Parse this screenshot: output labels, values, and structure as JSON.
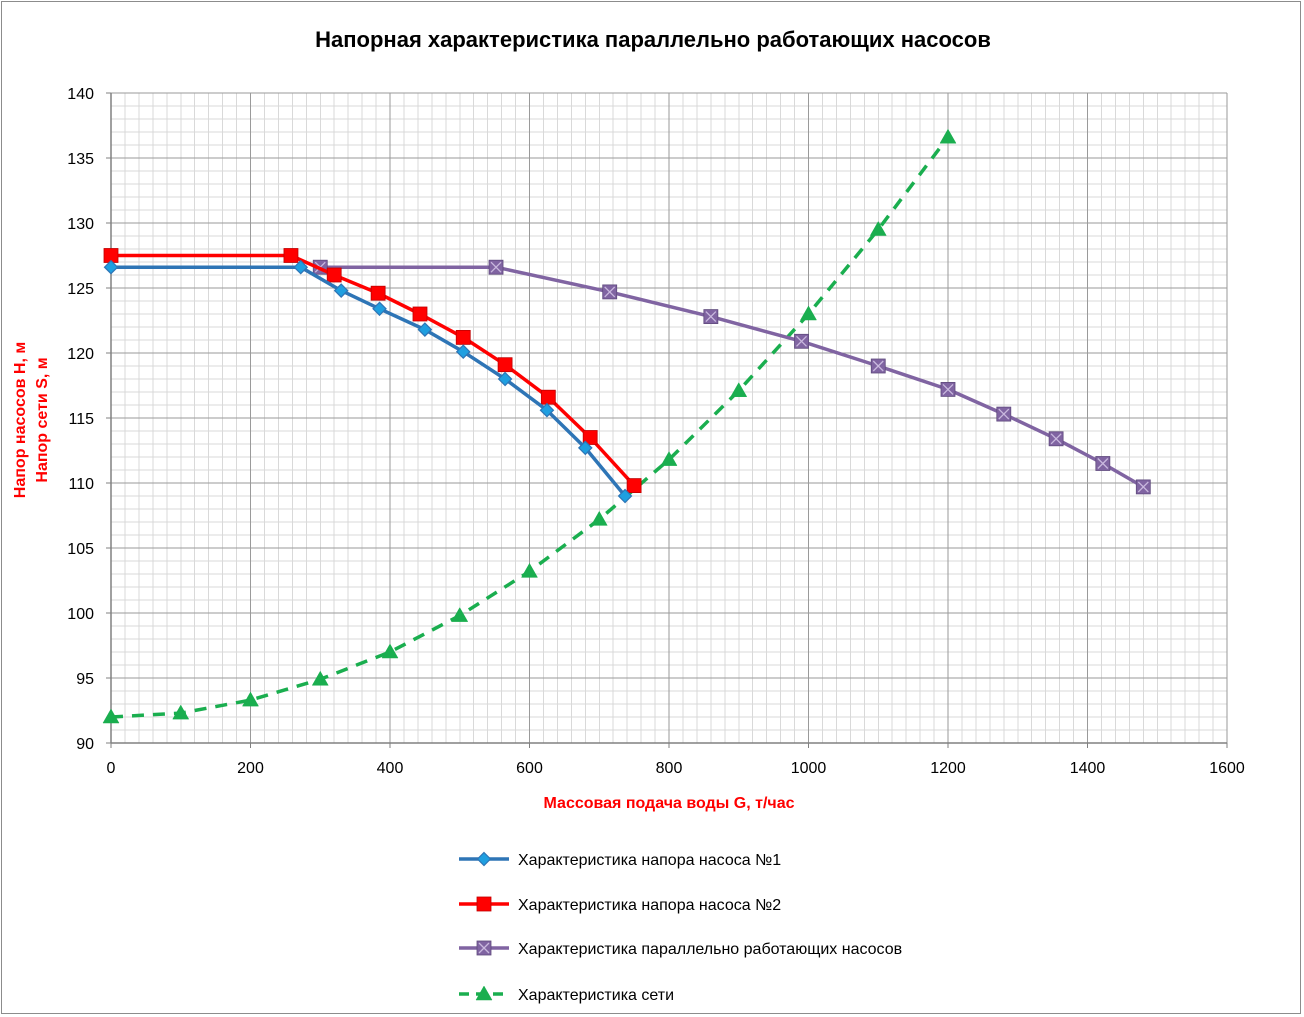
{
  "chart_data": {
    "type": "line",
    "title": "Напорная характеристика параллельно работающих насосов",
    "xlabel": "Массовая подача воды G, т/час",
    "ylabel_lines": [
      "Напор насосов Н, м",
      "Напор сети S, м"
    ],
    "xlim": [
      0,
      1600
    ],
    "ylim": [
      90,
      140
    ],
    "x_ticks": [
      0,
      200,
      400,
      600,
      800,
      1000,
      1200,
      1400,
      1600
    ],
    "y_ticks": [
      90,
      95,
      100,
      105,
      110,
      115,
      120,
      125,
      130,
      135,
      140
    ],
    "x_minor_step": 20,
    "y_minor_step": 1,
    "grid": true,
    "legend_position": "bottom",
    "series": [
      {
        "name": "Характеристика напора насоса №1",
        "color": "#2e75b6",
        "marker": "diamond",
        "marker_fill": "#1f9fe0",
        "dashed": false,
        "x": [
          0,
          272,
          330,
          385,
          450,
          505,
          565,
          625,
          680,
          737
        ],
        "y": [
          126.6,
          126.6,
          124.8,
          123.4,
          121.8,
          120.1,
          118.0,
          115.6,
          112.7,
          109.0
        ]
      },
      {
        "name": "Характеристика напора насоса №2",
        "color": "#ff0000",
        "marker": "square",
        "marker_fill": "#ff0000",
        "dashed": false,
        "x": [
          0,
          258,
          320,
          383,
          443,
          505,
          565,
          627,
          687,
          750
        ],
        "y": [
          127.5,
          127.5,
          126.0,
          124.6,
          123.0,
          121.2,
          119.1,
          116.6,
          113.5,
          109.8
        ]
      },
      {
        "name": "Характеристика параллельно работающих насосов",
        "color": "#8064a2",
        "marker": "square-x",
        "marker_fill": "#8064a2",
        "dashed": false,
        "x": [
          300,
          552,
          715,
          860,
          990,
          1100,
          1200,
          1280,
          1355,
          1422,
          1480
        ],
        "y": [
          126.6,
          126.6,
          124.7,
          122.8,
          120.9,
          119.0,
          117.2,
          115.3,
          113.4,
          111.5,
          109.7
        ]
      },
      {
        "name": "Характеристика сети",
        "color": "#1aae4f",
        "marker": "triangle",
        "marker_fill": "#1aae4f",
        "dashed": true,
        "x": [
          0,
          100,
          200,
          300,
          400,
          500,
          600,
          700,
          800,
          900,
          1000,
          1100,
          1200
        ],
        "y": [
          92.0,
          92.3,
          93.3,
          94.9,
          97.0,
          99.8,
          103.2,
          107.2,
          111.8,
          117.1,
          123.0,
          129.5,
          136.6
        ]
      }
    ]
  }
}
